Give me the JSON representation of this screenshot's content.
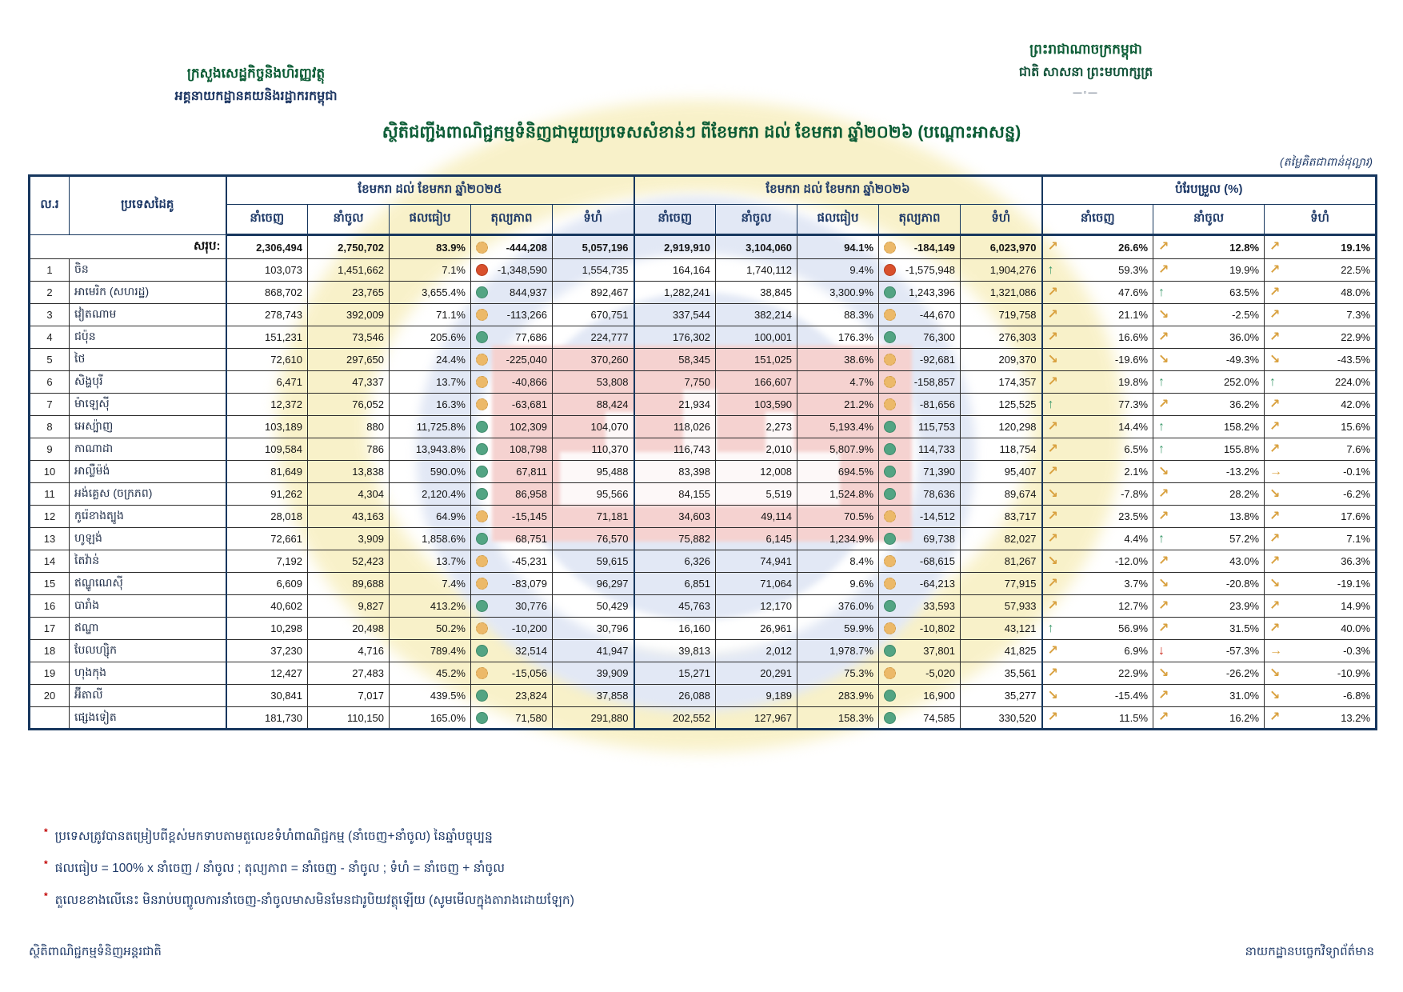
{
  "header": {
    "ministry_line1": "ក្រសួងសេដ្ឋកិច្ចនិងហិរញ្ញវត្ថុ",
    "ministry_line2": "អគ្គនាយកដ្ឋានគយនិងរដ្ឋាករកម្ពុជា",
    "kingdom_line1": "ព្រះរាជាណាចក្រកម្ពុជា",
    "kingdom_line2": "ជាតិ សាសនា ព្រះមហាក្សត្រ",
    "divider": "—◦—",
    "title": "ស្ថិតិជញ្ជីងពាណិជ្ជកម្មទំនិញជាមួយប្រទេសសំខាន់ៗ ពីខែមករា ដល់ ខែមករា ឆ្នាំ២០២៦ (បណ្ដោះអាសន្ន)",
    "unit_note": "(តម្លៃគិតជាពាន់ដុល្លារ)"
  },
  "table": {
    "col_no": "ល.រ",
    "col_country": "ប្រទេសដៃគូ",
    "group_2025": "ខែមករា ដល់ ខែមករា ឆ្នាំ២០២៥",
    "group_2026": "ខែមករា ដល់ ខែមករា ឆ្នាំ២០២៦",
    "group_change": "បំរែបម្រួល (%)",
    "sub_cols": [
      "នាំចេញ",
      "នាំចូល",
      "ផលធៀប",
      "តុល្យភាព",
      "ទំហំ"
    ],
    "change_cols": [
      "នាំចេញ",
      "នាំចូល",
      "ទំហំ"
    ],
    "total_label": "សរុប:",
    "total": {
      "p1": [
        "2,306,494",
        "2,750,702",
        "83.9%",
        "-444,208",
        "5,057,196"
      ],
      "d1": "orange",
      "p2": [
        "2,919,910",
        "3,104,060",
        "94.1%",
        "-184,149",
        "6,023,970"
      ],
      "d2": "orange",
      "chg": [
        [
          "ne",
          "26.6%"
        ],
        [
          "ne",
          "12.8%"
        ],
        [
          "ne",
          "19.1%"
        ]
      ]
    },
    "rows": [
      {
        "no": "1",
        "country": "ចិន",
        "p1": [
          "103,073",
          "1,451,662",
          "7.1%",
          "-1,348,590",
          "1,554,735"
        ],
        "d1": "red",
        "p2": [
          "164,164",
          "1,740,112",
          "9.4%",
          "-1,575,948",
          "1,904,276"
        ],
        "d2": "red",
        "chg": [
          [
            "up",
            "59.3%"
          ],
          [
            "ne",
            "19.9%"
          ],
          [
            "ne",
            "22.5%"
          ]
        ]
      },
      {
        "no": "2",
        "country": "អាមេរិក (សហរដ្ឋ)",
        "p1": [
          "868,702",
          "23,765",
          "3,655.4%",
          "844,937",
          "892,467"
        ],
        "d1": "green",
        "p2": [
          "1,282,241",
          "38,845",
          "3,300.9%",
          "1,243,396",
          "1,321,086"
        ],
        "d2": "green",
        "chg": [
          [
            "ne",
            "47.6%"
          ],
          [
            "up",
            "63.5%"
          ],
          [
            "ne",
            "48.0%"
          ]
        ]
      },
      {
        "no": "3",
        "country": "វៀតណាម",
        "p1": [
          "278,743",
          "392,009",
          "71.1%",
          "-113,266",
          "670,751"
        ],
        "d1": "orange",
        "p2": [
          "337,544",
          "382,214",
          "88.3%",
          "-44,670",
          "719,758"
        ],
        "d2": "orange",
        "chg": [
          [
            "ne",
            "21.1%"
          ],
          [
            "se",
            "-2.5%"
          ],
          [
            "ne",
            "7.3%"
          ]
        ]
      },
      {
        "no": "4",
        "country": "ជប៉ុន",
        "p1": [
          "151,231",
          "73,546",
          "205.6%",
          "77,686",
          "224,777"
        ],
        "d1": "green",
        "p2": [
          "176,302",
          "100,001",
          "176.3%",
          "76,300",
          "276,303"
        ],
        "d2": "green",
        "chg": [
          [
            "ne",
            "16.6%"
          ],
          [
            "ne",
            "36.0%"
          ],
          [
            "ne",
            "22.9%"
          ]
        ]
      },
      {
        "no": "5",
        "country": "ថៃ",
        "p1": [
          "72,610",
          "297,650",
          "24.4%",
          "-225,040",
          "370,260"
        ],
        "d1": "orange",
        "p2": [
          "58,345",
          "151,025",
          "38.6%",
          "-92,681",
          "209,370"
        ],
        "d2": "orange",
        "chg": [
          [
            "se",
            "-19.6%"
          ],
          [
            "se",
            "-49.3%"
          ],
          [
            "se",
            "-43.5%"
          ]
        ]
      },
      {
        "no": "6",
        "country": "សិង្ហបុរី",
        "p1": [
          "6,471",
          "47,337",
          "13.7%",
          "-40,866",
          "53,808"
        ],
        "d1": "orange",
        "p2": [
          "7,750",
          "166,607",
          "4.7%",
          "-158,857",
          "174,357"
        ],
        "d2": "orange",
        "chg": [
          [
            "ne",
            "19.8%"
          ],
          [
            "up",
            "252.0%"
          ],
          [
            "up",
            "224.0%"
          ]
        ]
      },
      {
        "no": "7",
        "country": "ម៉ាឡេស៊ី",
        "p1": [
          "12,372",
          "76,052",
          "16.3%",
          "-63,681",
          "88,424"
        ],
        "d1": "orange",
        "p2": [
          "21,934",
          "103,590",
          "21.2%",
          "-81,656",
          "125,525"
        ],
        "d2": "orange",
        "chg": [
          [
            "up",
            "77.3%"
          ],
          [
            "ne",
            "36.2%"
          ],
          [
            "ne",
            "42.0%"
          ]
        ]
      },
      {
        "no": "8",
        "country": "អេស្ប៉ាញ",
        "p1": [
          "103,189",
          "880",
          "11,725.8%",
          "102,309",
          "104,070"
        ],
        "d1": "green",
        "p2": [
          "118,026",
          "2,273",
          "5,193.4%",
          "115,753",
          "120,298"
        ],
        "d2": "green",
        "chg": [
          [
            "ne",
            "14.4%"
          ],
          [
            "up",
            "158.2%"
          ],
          [
            "ne",
            "15.6%"
          ]
        ]
      },
      {
        "no": "9",
        "country": "កាណាដា",
        "p1": [
          "109,584",
          "786",
          "13,943.8%",
          "108,798",
          "110,370"
        ],
        "d1": "green",
        "p2": [
          "116,743",
          "2,010",
          "5,807.9%",
          "114,733",
          "118,754"
        ],
        "d2": "green",
        "chg": [
          [
            "ne",
            "6.5%"
          ],
          [
            "up",
            "155.8%"
          ],
          [
            "ne",
            "7.6%"
          ]
        ]
      },
      {
        "no": "10",
        "country": "អាល្លឺម៉ង់",
        "p1": [
          "81,649",
          "13,838",
          "590.0%",
          "67,811",
          "95,488"
        ],
        "d1": "green",
        "p2": [
          "83,398",
          "12,008",
          "694.5%",
          "71,390",
          "95,407"
        ],
        "d2": "green",
        "chg": [
          [
            "ne",
            "2.1%"
          ],
          [
            "se",
            "-13.2%"
          ],
          [
            "e",
            "-0.1%"
          ]
        ]
      },
      {
        "no": "11",
        "country": "អង់គ្លេស (ចក្រភព)",
        "p1": [
          "91,262",
          "4,304",
          "2,120.4%",
          "86,958",
          "95,566"
        ],
        "d1": "green",
        "p2": [
          "84,155",
          "5,519",
          "1,524.8%",
          "78,636",
          "89,674"
        ],
        "d2": "green",
        "chg": [
          [
            "se",
            "-7.8%"
          ],
          [
            "ne",
            "28.2%"
          ],
          [
            "se",
            "-6.2%"
          ]
        ]
      },
      {
        "no": "12",
        "country": "កូរ៉េខាងត្បូង",
        "p1": [
          "28,018",
          "43,163",
          "64.9%",
          "-15,145",
          "71,181"
        ],
        "d1": "orange",
        "p2": [
          "34,603",
          "49,114",
          "70.5%",
          "-14,512",
          "83,717"
        ],
        "d2": "orange",
        "chg": [
          [
            "ne",
            "23.5%"
          ],
          [
            "ne",
            "13.8%"
          ],
          [
            "ne",
            "17.6%"
          ]
        ]
      },
      {
        "no": "13",
        "country": "ហូឡង់",
        "p1": [
          "72,661",
          "3,909",
          "1,858.6%",
          "68,751",
          "76,570"
        ],
        "d1": "green",
        "p2": [
          "75,882",
          "6,145",
          "1,234.9%",
          "69,738",
          "82,027"
        ],
        "d2": "green",
        "chg": [
          [
            "ne",
            "4.4%"
          ],
          [
            "up",
            "57.2%"
          ],
          [
            "ne",
            "7.1%"
          ]
        ]
      },
      {
        "no": "14",
        "country": "តៃវ៉ាន់",
        "p1": [
          "7,192",
          "52,423",
          "13.7%",
          "-45,231",
          "59,615"
        ],
        "d1": "orange",
        "p2": [
          "6,326",
          "74,941",
          "8.4%",
          "-68,615",
          "81,267"
        ],
        "d2": "orange",
        "chg": [
          [
            "se",
            "-12.0%"
          ],
          [
            "ne",
            "43.0%"
          ],
          [
            "ne",
            "36.3%"
          ]
        ]
      },
      {
        "no": "15",
        "country": "ឥណ្ឌូណេស៊ី",
        "p1": [
          "6,609",
          "89,688",
          "7.4%",
          "-83,079",
          "96,297"
        ],
        "d1": "orange",
        "p2": [
          "6,851",
          "71,064",
          "9.6%",
          "-64,213",
          "77,915"
        ],
        "d2": "orange",
        "chg": [
          [
            "ne",
            "3.7%"
          ],
          [
            "se",
            "-20.8%"
          ],
          [
            "se",
            "-19.1%"
          ]
        ]
      },
      {
        "no": "16",
        "country": "បារាំង",
        "p1": [
          "40,602",
          "9,827",
          "413.2%",
          "30,776",
          "50,429"
        ],
        "d1": "green",
        "p2": [
          "45,763",
          "12,170",
          "376.0%",
          "33,593",
          "57,933"
        ],
        "d2": "green",
        "chg": [
          [
            "ne",
            "12.7%"
          ],
          [
            "ne",
            "23.9%"
          ],
          [
            "ne",
            "14.9%"
          ]
        ]
      },
      {
        "no": "17",
        "country": "ឥណ្ឌា",
        "p1": [
          "10,298",
          "20,498",
          "50.2%",
          "-10,200",
          "30,796"
        ],
        "d1": "orange",
        "p2": [
          "16,160",
          "26,961",
          "59.9%",
          "-10,802",
          "43,121"
        ],
        "d2": "orange",
        "chg": [
          [
            "up",
            "56.9%"
          ],
          [
            "ne",
            "31.5%"
          ],
          [
            "ne",
            "40.0%"
          ]
        ]
      },
      {
        "no": "18",
        "country": "បែលហ្ស៊ិក",
        "p1": [
          "37,230",
          "4,716",
          "789.4%",
          "32,514",
          "41,947"
        ],
        "d1": "green",
        "p2": [
          "39,813",
          "2,012",
          "1,978.7%",
          "37,801",
          "41,825"
        ],
        "d2": "green",
        "chg": [
          [
            "ne",
            "6.9%"
          ],
          [
            "down",
            "-57.3%"
          ],
          [
            "e",
            "-0.3%"
          ]
        ]
      },
      {
        "no": "19",
        "country": "ហុងកុង",
        "p1": [
          "12,427",
          "27,483",
          "45.2%",
          "-15,056",
          "39,909"
        ],
        "d1": "orange",
        "p2": [
          "15,271",
          "20,291",
          "75.3%",
          "-5,020",
          "35,561"
        ],
        "d2": "orange",
        "chg": [
          [
            "ne",
            "22.9%"
          ],
          [
            "se",
            "-26.2%"
          ],
          [
            "se",
            "-10.9%"
          ]
        ]
      },
      {
        "no": "20",
        "country": "អ៊ីតាលី",
        "p1": [
          "30,841",
          "7,017",
          "439.5%",
          "23,824",
          "37,858"
        ],
        "d1": "green",
        "p2": [
          "26,088",
          "9,189",
          "283.9%",
          "16,900",
          "35,277"
        ],
        "d2": "green",
        "chg": [
          [
            "se",
            "-15.4%"
          ],
          [
            "ne",
            "31.0%"
          ],
          [
            "se",
            "-6.8%"
          ]
        ]
      },
      {
        "no": "",
        "country": "ផ្សេងទៀត",
        "others": true,
        "p1": [
          "181,730",
          "110,150",
          "165.0%",
          "71,580",
          "291,880"
        ],
        "d1": "green",
        "p2": [
          "202,552",
          "127,967",
          "158.3%",
          "74,585",
          "330,520"
        ],
        "d2": "green",
        "chg": [
          [
            "ne",
            "11.5%"
          ],
          [
            "ne",
            "16.2%"
          ],
          [
            "ne",
            "13.2%"
          ]
        ]
      }
    ]
  },
  "footnotes": [
    "ប្រទេសត្រូវបានតម្រៀបពីខ្ពស់មកទាបតាមតួលេខទំហំពាណិជ្ជកម្ម (នាំចេញ+នាំចូល) នៃឆ្នាំបច្ចុប្បន្ន",
    "ផលធៀប = 100% x នាំចេញ / នាំចូល ; តុល្យភាព = នាំចេញ - នាំចូល ; ទំហំ = នាំចេញ + នាំចូល",
    "តួលេខខាងលើនេះ មិនរាប់បញ្ចូលការនាំចេញ-នាំចូលមាសមិនមែនជារូបិយវត្ថុឡើយ (សូមមើលក្នុងតារាងដោយឡែក)"
  ],
  "footer": {
    "left": "ស្ថិតិពាណិជ្ជកម្មទំនិញអន្តរជាតិ",
    "right": "នាយកដ្ឋានបច្ចេកវិទ្យាព័ត៌មាន"
  },
  "colors": {
    "title_green": "#0A5B34",
    "navy": "#1F3A68",
    "border_navy": "#17375E",
    "dot_green": "#53A483",
    "dot_orange": "#ECB969",
    "dot_red": "#D8502C",
    "arrow_gold": "#D9A13F",
    "arrow_green": "#3E9B6E",
    "arrow_red": "#CC2B1D",
    "footnote_star_red": "#C00000",
    "watermark_yellow": "#F8F0C4",
    "watermark_blue": "#E2E8F5",
    "watermark_pink": "#F5D2D0"
  }
}
